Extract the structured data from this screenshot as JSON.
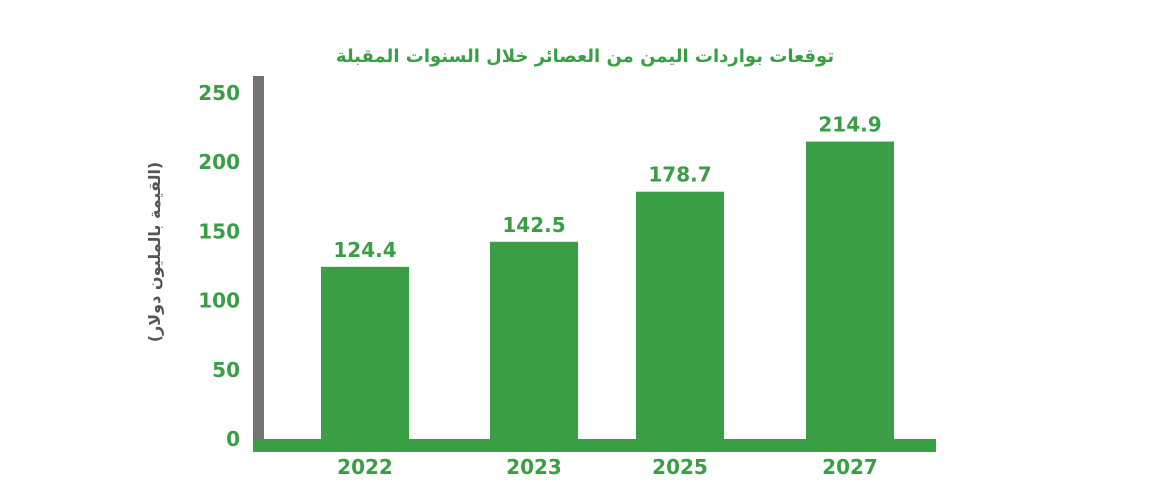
{
  "chart_data": {
    "type": "bar",
    "title": "توقعات بواردات اليمن من العصائر خلال السنوات المقبلة",
    "xlabel": "",
    "ylabel": "(القيمة بالمليون دولار)",
    "categories": [
      "2022",
      "2023",
      "2025",
      "2027"
    ],
    "values": [
      124.4,
      142.5,
      178.7,
      214.9
    ],
    "value_labels": [
      "124.4",
      "142.5",
      "178.7",
      "214.9"
    ],
    "ylim": [
      0,
      250
    ],
    "yticks": [
      0,
      50,
      100,
      150,
      200,
      250
    ],
    "ytick_labels": [
      "0",
      "50",
      "100",
      "150",
      "200",
      "250"
    ],
    "grid": false,
    "legend": "none"
  },
  "colors": {
    "bar": "#3a9e45",
    "text": "#3a9e45",
    "title": "#3a9e45",
    "ylabel": "#555555",
    "axis": "#737373"
  }
}
